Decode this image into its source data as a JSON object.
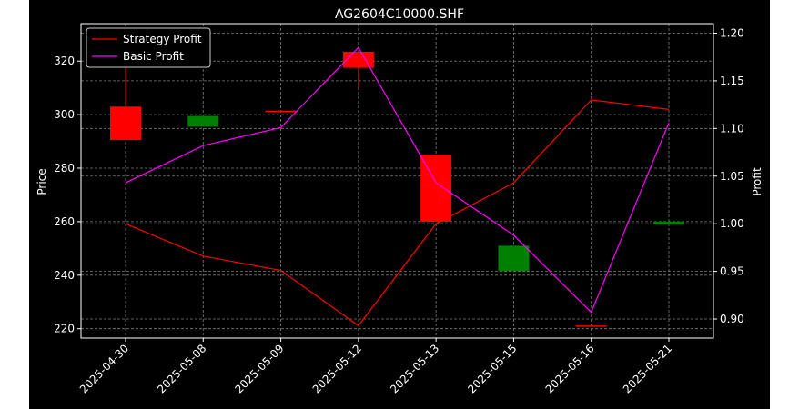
{
  "chart_data": {
    "type": "candlestick-with-lines",
    "title": "AG2604C10000.SHF",
    "xlabel": "",
    "ylabel_left": "Price",
    "ylabel_right": "Profit",
    "categories": [
      "2025-04-30",
      "2025-05-08",
      "2025-05-09",
      "2025-05-12",
      "2025-05-13",
      "2025-05-15",
      "2025-05-16",
      "2025-05-21"
    ],
    "candles": [
      {
        "open": 303,
        "close": 290.5,
        "high": 318,
        "low": 290.5
      },
      {
        "open": 295.5,
        "close": 299.5,
        "high": 299.5,
        "low": 295.5
      },
      {
        "open": 301.5,
        "close": 301,
        "high": 301.5,
        "low": 301
      },
      {
        "open": 323.5,
        "close": 317.5,
        "high": 323.5,
        "low": 310
      },
      {
        "open": 285,
        "close": 260,
        "high": 285,
        "low": 260
      },
      {
        "open": 241.5,
        "close": 251,
        "high": 251,
        "low": 241.5
      },
      {
        "open": 221.2,
        "close": 220.8,
        "high": 221.2,
        "low": 220.8
      },
      {
        "open": 259,
        "close": 260,
        "high": 260,
        "low": 259
      }
    ],
    "left_ylim": [
      216.5,
      334
    ],
    "left_ticks": [
      220,
      240,
      260,
      280,
      300,
      320
    ],
    "right_ylim": [
      0.88,
      1.21
    ],
    "right_ticks": [
      0.9,
      0.95,
      1.0,
      1.05,
      1.1,
      1.15,
      1.2
    ],
    "right_tick_labels": [
      "0.90",
      "0.95",
      "1.00",
      "1.05",
      "1.10",
      "1.15",
      "1.20"
    ],
    "series": [
      {
        "name": "Strategy Profit",
        "color": "#ff0000",
        "values": [
          1.0,
          0.966,
          0.951,
          0.893,
          1.0,
          1.043,
          1.13,
          1.12
        ]
      },
      {
        "name": "Basic Profit",
        "color": "#ff00ff",
        "values": [
          1.043,
          1.082,
          1.101,
          1.185,
          1.043,
          0.988,
          0.907,
          1.106
        ]
      }
    ],
    "up_color": "#008000",
    "down_color": "#ff0000",
    "background": "#000000",
    "grid": true,
    "legend_position": "top-left"
  }
}
